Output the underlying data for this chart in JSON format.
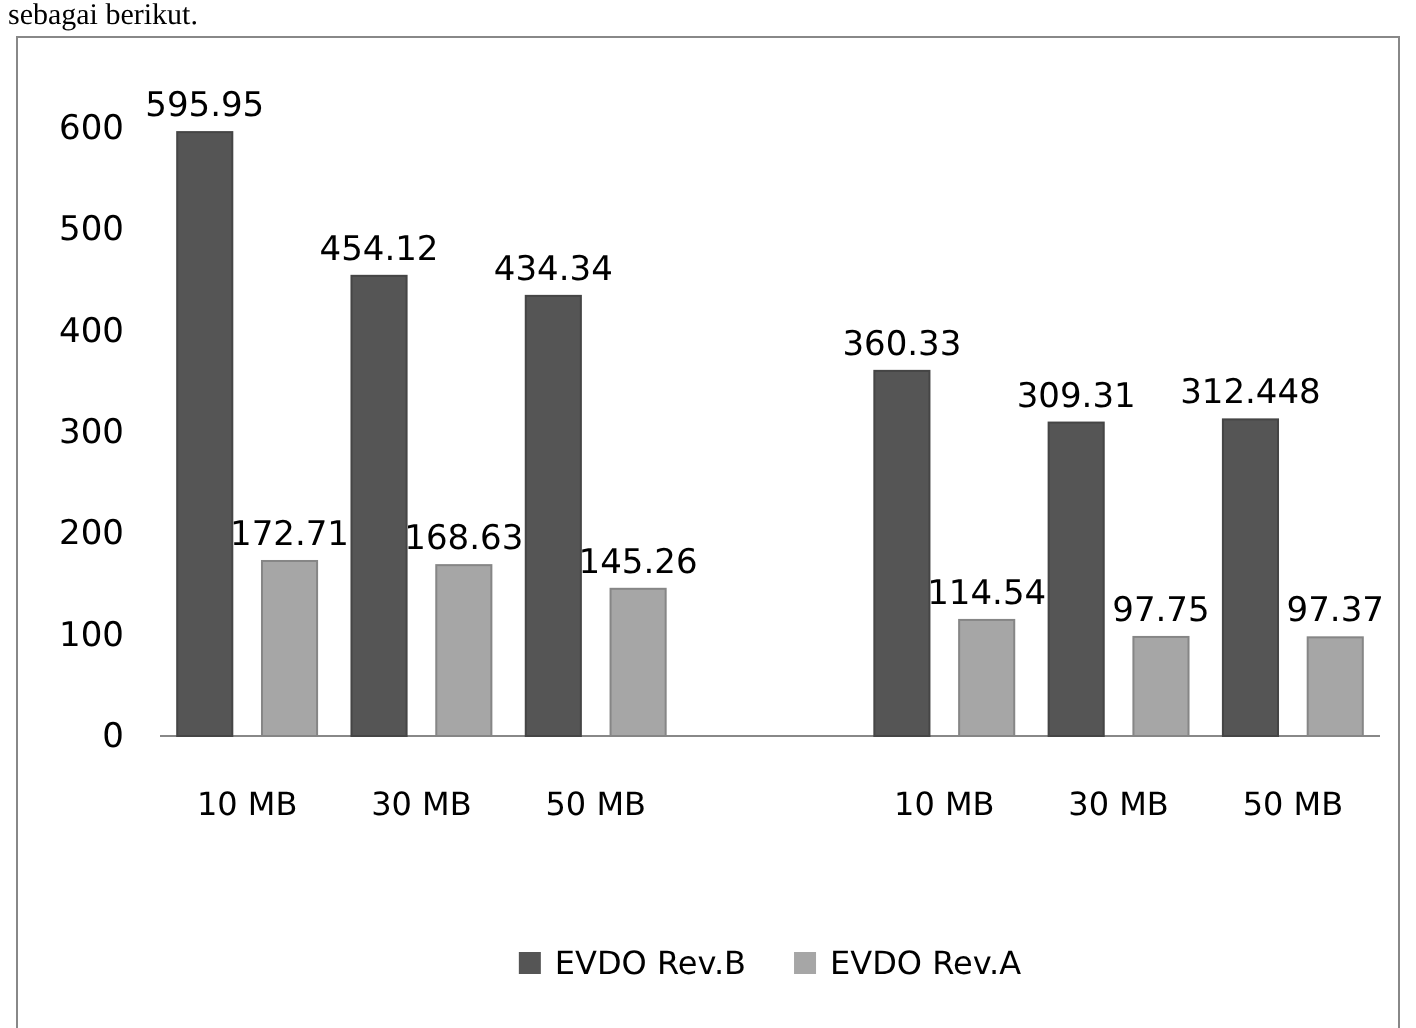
{
  "chart_data": {
    "type": "bar",
    "categories": [
      "10 MB",
      "30 MB",
      "50 MB",
      null,
      "10 MB",
      "30 MB",
      "50 MB"
    ],
    "series": [
      {
        "name": "EVDO Rev.B",
        "color": "#555555",
        "values": [
          595.95,
          454.12,
          434.34,
          null,
          360.33,
          309.31,
          312.448
        ]
      },
      {
        "name": "EVDO Rev.A",
        "color": "#a6a6a6",
        "values": [
          172.71,
          168.63,
          145.26,
          null,
          114.54,
          97.75,
          97.37
        ]
      }
    ],
    "ylim": [
      0,
      600
    ],
    "yticks": [
      0,
      100,
      200,
      300,
      400,
      500,
      600
    ],
    "grid": false,
    "legend": "bottom",
    "data_labels": true,
    "annotations": [
      "sebagai berikut."
    ]
  }
}
